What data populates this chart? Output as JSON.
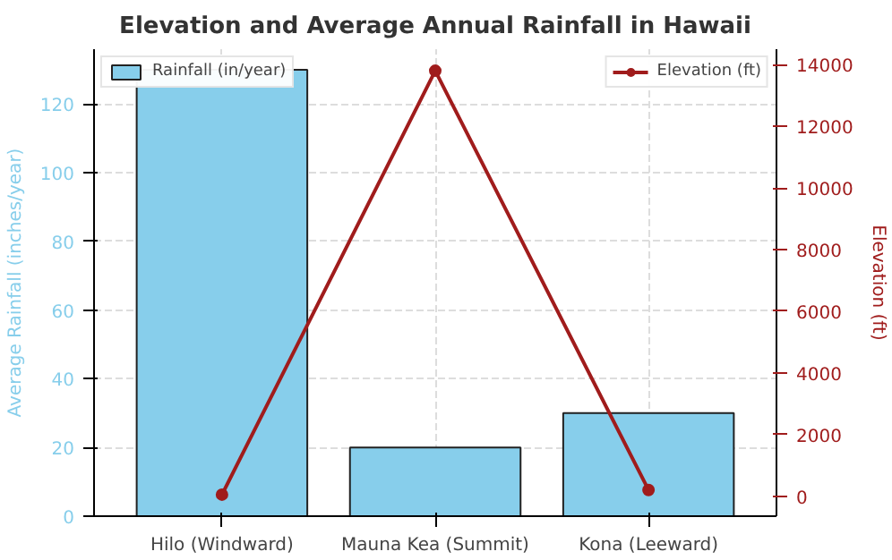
{
  "chart_data": {
    "type": "bar",
    "title": "Elevation and Average Annual Rainfall in Hawaii",
    "categories": [
      "Hilo (Windward)",
      "Mauna Kea (Summit)",
      "Kona (Leeward)"
    ],
    "ylabel": "Average Rainfall (inches/year)",
    "y2label": "Elevation (ft)",
    "ylim": [
      0,
      136
    ],
    "yticks": [
      0,
      20,
      40,
      60,
      80,
      100,
      120
    ],
    "y2lim": [
      -650,
      14500
    ],
    "y2ticks": [
      0,
      2000,
      4000,
      6000,
      8000,
      10000,
      12000,
      14000
    ],
    "series": [
      {
        "name": "Rainfall (in/year)",
        "color": "#87ceeb",
        "values": [
          130,
          20,
          30
        ]
      },
      {
        "name": "Elevation (ft)",
        "type": "line",
        "axis": "y2",
        "color": "#a01c1c",
        "values": [
          50,
          13800,
          200
        ]
      }
    ],
    "grid": true,
    "legend": "top",
    "marker": "circle"
  }
}
